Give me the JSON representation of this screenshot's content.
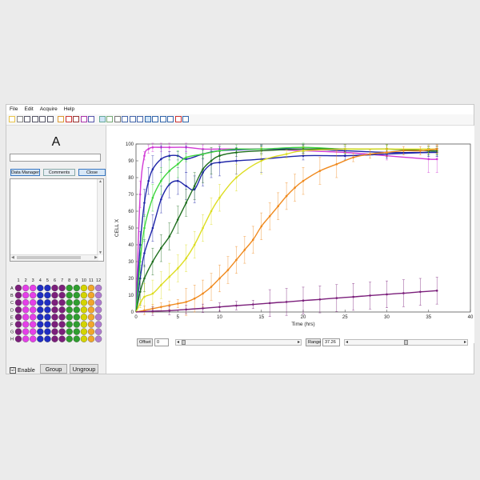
{
  "menu": [
    "File",
    "Edit",
    "Acquire",
    "Help"
  ],
  "toolbar_icons": [
    "open-icon",
    "save-icon",
    "zoom-in-icon",
    "zoom-out-icon",
    "pan-icon",
    "select-icon",
    "plate-icon-1",
    "plate-icon-2",
    "plate-icon-3",
    "plate-icon-4",
    "plate-icon-5",
    "curve-icon",
    "scatter-icon",
    "flask-icon",
    "grid-icon",
    "table-icon",
    "columns-icon",
    "errorbar-icon",
    "cross-icon",
    "dots-icon",
    "expand-icon",
    "refresh-icon",
    "fit-icon"
  ],
  "panel": {
    "well_label": "A",
    "buttons": [
      "Data Manager",
      "Comments",
      "Close"
    ]
  },
  "plate": {
    "cols": [
      "1",
      "2",
      "3",
      "4",
      "5",
      "6",
      "7",
      "8",
      "9",
      "10",
      "11",
      "12"
    ],
    "rows": [
      "A",
      "B",
      "C",
      "D",
      "E",
      "F",
      "G",
      "H"
    ],
    "col_colors": [
      "#7b1f7b",
      "#e43fe8",
      "#e43fe8",
      "#1f2ec2",
      "#1f2ec2",
      "#7b1f7b",
      "#7b1f7b",
      "#2f9e2f",
      "#2f9e2f",
      "#d4d400",
      "#f1a72a",
      "#b07bd0"
    ]
  },
  "controls": {
    "enable_label": "Enable",
    "enable_checked": "☑",
    "group_label": "Group",
    "ungroup_label": "Ungroup",
    "offset_label": "Offset",
    "offset_value": "0",
    "range_label": "Range",
    "range_value": "37.26"
  },
  "chart_data": {
    "type": "line",
    "xlabel": "Time (hrs)",
    "ylabel": "CELL X",
    "xlim": [
      0,
      40
    ],
    "ylim": [
      0,
      100
    ],
    "xticks": [
      0,
      5,
      10,
      15,
      20,
      25,
      30,
      35,
      40
    ],
    "yticks": [
      0,
      10,
      20,
      30,
      40,
      50,
      60,
      70,
      80,
      90,
      100
    ],
    "grid": false,
    "series": [
      {
        "color": "#d23ad6",
        "x": [
          0,
          0.5,
          1,
          1.5,
          2,
          3,
          4,
          6,
          8,
          10,
          15,
          20,
          25,
          30,
          35,
          36
        ],
        "y": [
          0,
          70,
          93,
          97,
          98,
          98,
          98,
          98,
          97,
          97,
          97,
          96,
          95,
          93,
          91,
          91
        ]
      },
      {
        "color": "#1f26a8",
        "x": [
          0,
          0.5,
          1,
          1.5,
          2,
          3,
          4,
          5,
          6,
          8,
          10,
          15,
          20,
          25,
          30,
          35,
          36
        ],
        "y": [
          0,
          40,
          65,
          78,
          85,
          91,
          93,
          93,
          91,
          94,
          96,
          97,
          97,
          96,
          95,
          95,
          95
        ]
      },
      {
        "color": "#1f26a8",
        "x": [
          0,
          0.5,
          1,
          2,
          3,
          4,
          5,
          6,
          7,
          8,
          9,
          10,
          12,
          15,
          20,
          25,
          30,
          35,
          36
        ],
        "y": [
          0,
          20,
          35,
          50,
          67,
          76,
          78,
          75,
          73,
          83,
          88,
          89,
          90,
          91,
          93,
          93,
          94,
          95,
          95
        ]
      },
      {
        "color": "#3fd63f",
        "x": [
          0,
          0.5,
          1,
          2,
          3,
          4,
          5,
          6,
          8,
          10,
          12,
          15,
          20,
          25,
          30,
          35,
          36
        ],
        "y": [
          0,
          30,
          50,
          68,
          78,
          84,
          88,
          92,
          94,
          96,
          97,
          97,
          98,
          97,
          97,
          96,
          96
        ]
      },
      {
        "color": "#1e6e1e",
        "x": [
          0,
          0.5,
          1,
          2,
          3,
          4,
          5,
          6,
          7,
          8,
          9,
          10,
          12,
          15,
          20,
          25,
          30,
          35,
          36
        ],
        "y": [
          0,
          12,
          20,
          30,
          38,
          45,
          55,
          65,
          75,
          85,
          90,
          93,
          95,
          96,
          97,
          97,
          97,
          96,
          96
        ]
      },
      {
        "color": "#dddd22",
        "x": [
          0,
          0.5,
          1,
          2,
          3,
          4,
          5,
          6,
          7,
          8,
          9,
          10,
          12,
          15,
          18,
          20,
          25,
          30,
          35,
          36
        ],
        "y": [
          0,
          5,
          9,
          11,
          16,
          21,
          26,
          32,
          40,
          50,
          60,
          68,
          80,
          90,
          94,
          96,
          97,
          97,
          97,
          97
        ]
      },
      {
        "color": "#f08a1e",
        "x": [
          0,
          1,
          2,
          3,
          4,
          5,
          6,
          7,
          8,
          9,
          10,
          11,
          12,
          13,
          14,
          15,
          16,
          17,
          18,
          19,
          20,
          22,
          24,
          26,
          28,
          30,
          32,
          34,
          36
        ],
        "y": [
          0,
          1,
          2,
          3,
          4,
          5,
          6,
          8,
          11,
          15,
          20,
          25,
          31,
          37,
          43,
          51,
          57,
          63,
          69,
          74,
          78,
          84,
          88,
          92,
          94,
          95,
          96,
          96,
          97
        ]
      },
      {
        "color": "#7b1f7b",
        "x": [
          0,
          2,
          4,
          6,
          8,
          10,
          12,
          14,
          16,
          18,
          20,
          22,
          24,
          26,
          28,
          30,
          32,
          34,
          36
        ],
        "y": [
          0,
          0.5,
          0.8,
          1.5,
          2.2,
          3,
          3.8,
          4.5,
          5.3,
          6,
          6.8,
          7.5,
          8.3,
          9,
          9.8,
          10.5,
          11.2,
          12,
          12.7
        ]
      }
    ]
  }
}
